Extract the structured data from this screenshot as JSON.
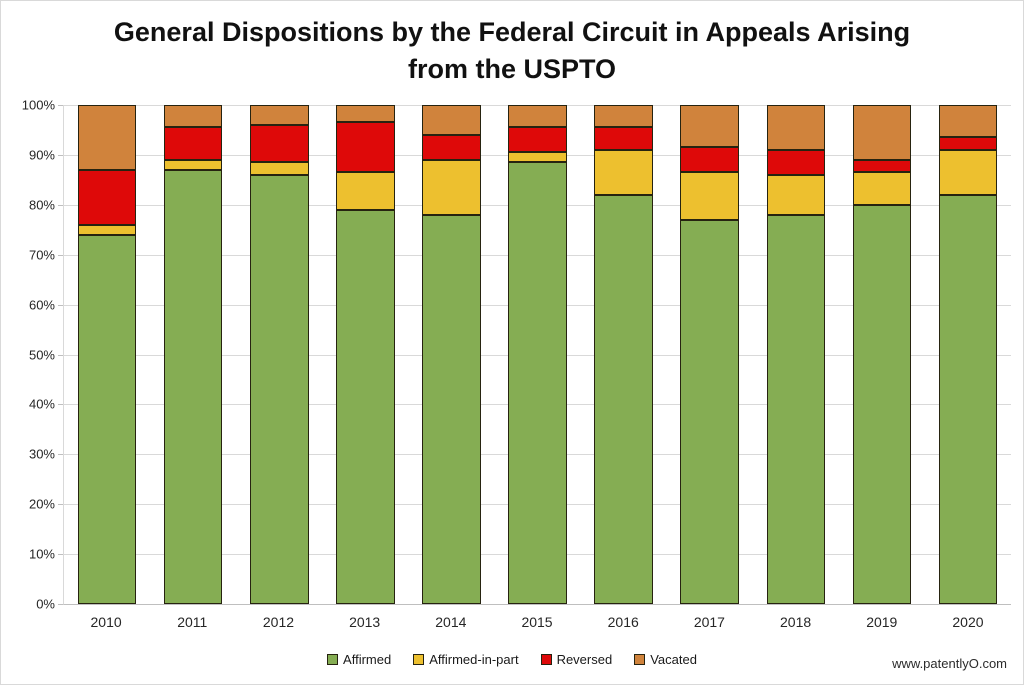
{
  "title": {
    "line1": "General Dispositions by the Federal Circuit in Appeals Arising",
    "line2": "from the USPTO"
  },
  "watermark": "www.patentlyO.com",
  "chart_data": {
    "type": "bar",
    "stacked": true,
    "percent_stacked": true,
    "title": "General Dispositions by the Federal Circuit in Appeals Arising from the USPTO",
    "categories": [
      "2010",
      "2011",
      "2012",
      "2013",
      "2014",
      "2015",
      "2016",
      "2017",
      "2018",
      "2019",
      "2020"
    ],
    "series": [
      {
        "name": "Affirmed",
        "color": "#85AD53",
        "values": [
          74,
          87,
          86,
          79,
          78,
          88.5,
          82,
          77,
          78,
          80,
          82
        ]
      },
      {
        "name": "Affirmed-in-part",
        "color": "#EDC02F",
        "values": [
          2,
          2,
          2.5,
          7.5,
          11,
          2,
          9,
          9.5,
          8,
          6.5,
          9
        ]
      },
      {
        "name": "Reversed",
        "color": "#DE0909",
        "values": [
          11,
          6.5,
          7.5,
          10,
          5,
          5,
          4.5,
          5,
          5,
          2.5,
          2.5
        ]
      },
      {
        "name": "Vacated",
        "color": "#D0833C",
        "values": [
          13,
          4.5,
          4,
          3.5,
          6,
          4.5,
          4.5,
          8.5,
          9,
          11,
          6.5
        ]
      }
    ],
    "ylim": [
      0,
      100
    ],
    "ytick_labels": [
      "100%",
      "90%",
      "80%",
      "70%",
      "60%",
      "50%",
      "40%",
      "30%",
      "20%",
      "10%",
      "0%"
    ],
    "grid": true,
    "gridline_color": "#D9D9D9",
    "legend_position": "bottom"
  }
}
